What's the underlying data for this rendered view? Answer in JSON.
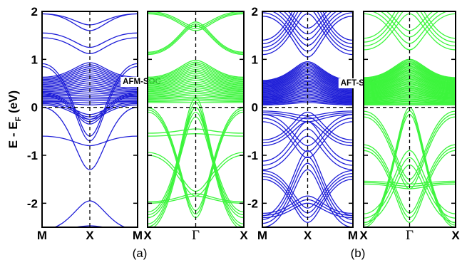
{
  "chart_data": {
    "type": "line",
    "ylabel_main": "E - E",
    "ylabel_sub": "F",
    "ylabel_unit": "(eV)",
    "ylim": [
      -2.5,
      2.0
    ],
    "yticks": [
      -2,
      -1,
      0,
      1,
      2
    ],
    "ytick_labels": [
      "-2",
      "-1",
      "0",
      "1",
      "2"
    ],
    "fermi_level": 0,
    "panels": [
      {
        "id": "a",
        "label": "(a)",
        "annotation": "AFM-SOC",
        "subplots": [
          {
            "kpoints": [
              "M",
              "X",
              "M"
            ],
            "color": "#1f1fd8",
            "band_groups": [
              {
                "edge": 0.05,
                "center": -0.25,
                "count": 3,
                "spread": 0.1
              },
              {
                "edge": 0.85,
                "center": -0.7,
                "count": 2,
                "spread": 0.1
              },
              {
                "edge": 0.25,
                "center": -0.35,
                "count": 3,
                "spread": 0.1
              },
              {
                "edge": 0.0,
                "center": -1.3,
                "count": 1,
                "spread": 0
              },
              {
                "edge": -0.6,
                "center": -0.8,
                "count": 1,
                "spread": 0
              },
              {
                "edge": -2.55,
                "center": -1.95,
                "count": 1,
                "spread": 0
              },
              {
                "edge": -2.55,
                "center": -2.47,
                "count": 1,
                "spread": 0
              },
              {
                "edge": 0.1,
                "center": 0.05,
                "count": 22,
                "spread": 0.88
              },
              {
                "edge": 1.95,
                "center": 1.6,
                "count": 1,
                "spread": 0
              },
              {
                "edge": 1.95,
                "center": 1.72,
                "count": 1,
                "spread": 0
              },
              {
                "edge": 1.55,
                "center": 1.25,
                "count": 1,
                "spread": 0
              },
              {
                "edge": 1.45,
                "center": 1.12,
                "count": 1,
                "spread": 0
              }
            ]
          },
          {
            "kpoints": [
              "X",
              "Γ",
              "X"
            ],
            "color": "#3cf53c",
            "band_groups": [
              {
                "edge": -2.55,
                "center": 0.0,
                "count": 3,
                "spread": 0.2
              },
              {
                "edge": -2.3,
                "center": -0.2,
                "count": 3,
                "spread": 0.2
              },
              {
                "edge": -0.1,
                "center": -2.3,
                "count": 3,
                "spread": 0.15
              },
              {
                "edge": -1.0,
                "center": -1.85,
                "count": 2,
                "spread": 0.1
              },
              {
                "edge": -2.0,
                "center": -1.85,
                "count": 2,
                "spread": 0.05
              },
              {
                "edge": -0.6,
                "center": -0.55,
                "count": 2,
                "spread": 0.1
              },
              {
                "edge": 0.1,
                "center": 0.1,
                "count": 24,
                "spread": 0.88
              },
              {
                "edge": 1.95,
                "center": 1.6,
                "count": 3,
                "spread": 0.08
              },
              {
                "edge": 1.1,
                "center": 1.7,
                "count": 3,
                "spread": 0.08
              }
            ]
          }
        ]
      },
      {
        "id": "b",
        "label": "(b)",
        "annotation": "AFT-SOC",
        "subplots": [
          {
            "kpoints": [
              "M",
              "X",
              "M"
            ],
            "color": "#1f1fd8",
            "band_groups": [
              {
                "edge": 0.05,
                "center": 0.1,
                "count": 30,
                "spread": 0.85
              },
              {
                "edge": 1.9,
                "center": 1.05,
                "count": 6,
                "spread": 0.6
              },
              {
                "edge": 1.1,
                "center": 1.95,
                "count": 5,
                "spread": 0.5
              },
              {
                "edge": -0.15,
                "center": -0.3,
                "count": 3,
                "spread": 0.12
              },
              {
                "edge": -0.8,
                "center": -0.3,
                "count": 3,
                "spread": 0.2
              },
              {
                "edge": -0.3,
                "center": -1.05,
                "count": 3,
                "spread": 0.25
              },
              {
                "edge": -1.3,
                "center": -0.6,
                "count": 3,
                "spread": 0.3
              },
              {
                "edge": -2.5,
                "center": -1.3,
                "count": 4,
                "spread": 0.4
              },
              {
                "edge": -1.5,
                "center": -2.4,
                "count": 4,
                "spread": 0.3
              },
              {
                "edge": -2.3,
                "center": -2.0,
                "count": 3,
                "spread": 0.15
              }
            ]
          },
          {
            "kpoints": [
              "X",
              "Γ",
              "X"
            ],
            "color": "#3cf53c",
            "band_groups": [
              {
                "edge": 0.05,
                "center": 0.05,
                "count": 40,
                "spread": 0.95
              },
              {
                "edge": 1.95,
                "center": 1.2,
                "count": 4,
                "spread": 0.4
              },
              {
                "edge": 1.2,
                "center": 1.95,
                "count": 4,
                "spread": 0.4
              },
              {
                "edge": -2.5,
                "center": -0.15,
                "count": 3,
                "spread": 0.15
              },
              {
                "edge": -0.2,
                "center": -1.7,
                "count": 3,
                "spread": 0.2
              },
              {
                "edge": -1.6,
                "center": -1.7,
                "count": 3,
                "spread": 0.1
              },
              {
                "edge": -0.9,
                "center": -2.4,
                "count": 3,
                "spread": 0.2
              },
              {
                "edge": -2.4,
                "center": -1.2,
                "count": 3,
                "spread": 0.3
              }
            ]
          }
        ]
      }
    ]
  }
}
